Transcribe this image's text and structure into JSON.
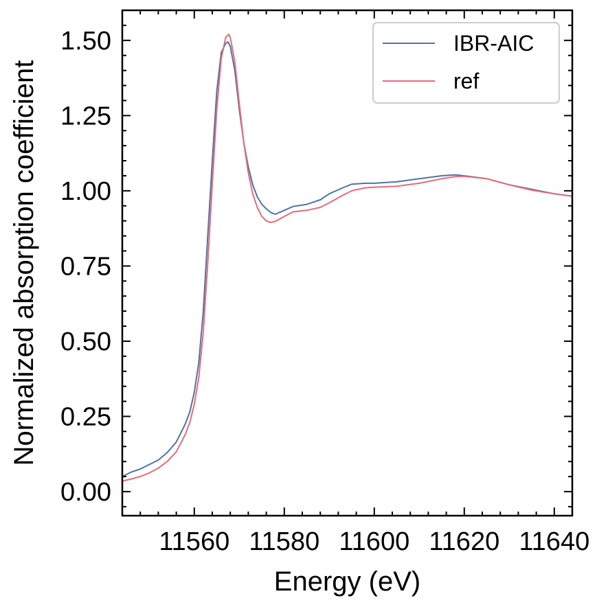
{
  "chart_data": {
    "type": "line",
    "xlabel": "Energy (eV)",
    "ylabel": "Normalized absorption coefficient",
    "xlim": [
      11544,
      11644
    ],
    "ylim": [
      -0.08,
      1.6
    ],
    "x_ticks": [
      11560,
      11580,
      11600,
      11620,
      11640
    ],
    "x_tick_labels": [
      "11560",
      "11580",
      "11600",
      "11620",
      "11640"
    ],
    "y_ticks": [
      0.0,
      0.25,
      0.5,
      0.75,
      1.0,
      1.25,
      1.5
    ],
    "y_tick_labels": [
      "0.00",
      "0.25",
      "0.50",
      "0.75",
      "1.00",
      "1.25",
      "1.50"
    ],
    "grid": false,
    "legend_position": "top-right",
    "series": [
      {
        "name": "IBR-AIC",
        "color": "#4a74a8",
        "x": [
          11544,
          11546,
          11548,
          11550,
          11552,
          11554,
          11556,
          11558,
          11559,
          11560,
          11561,
          11562,
          11563,
          11564,
          11565,
          11566,
          11567,
          11567.5,
          11568,
          11569,
          11570,
          11571,
          11572,
          11573,
          11574,
          11575,
          11576,
          11577,
          11578,
          11580,
          11582,
          11585,
          11588,
          11590,
          11593,
          11595,
          11598,
          11600,
          11605,
          11610,
          11615,
          11618,
          11620,
          11625,
          11630,
          11635,
          11640,
          11644
        ],
        "y": [
          0.05,
          0.065,
          0.075,
          0.09,
          0.105,
          0.13,
          0.165,
          0.225,
          0.265,
          0.33,
          0.43,
          0.6,
          0.85,
          1.1,
          1.33,
          1.46,
          1.49,
          1.495,
          1.48,
          1.4,
          1.27,
          1.16,
          1.08,
          1.02,
          0.98,
          0.955,
          0.94,
          0.928,
          0.922,
          0.935,
          0.948,
          0.955,
          0.97,
          0.99,
          1.01,
          1.022,
          1.025,
          1.025,
          1.03,
          1.04,
          1.05,
          1.053,
          1.05,
          1.04,
          1.02,
          1.005,
          0.99,
          0.982
        ]
      },
      {
        "name": "ref",
        "color": "#e8697a",
        "x": [
          11544,
          11546,
          11548,
          11550,
          11552,
          11554,
          11556,
          11558,
          11559,
          11560,
          11561,
          11562,
          11563,
          11564,
          11565,
          11566,
          11567,
          11567.7,
          11568,
          11569,
          11570,
          11571,
          11572,
          11573,
          11574,
          11575,
          11576,
          11577,
          11578,
          11580,
          11582,
          11585,
          11588,
          11590,
          11593,
          11595,
          11598,
          11600,
          11605,
          11610,
          11615,
          11618,
          11620,
          11625,
          11630,
          11635,
          11640,
          11644
        ],
        "y": [
          0.035,
          0.042,
          0.05,
          0.062,
          0.078,
          0.1,
          0.132,
          0.19,
          0.23,
          0.29,
          0.38,
          0.53,
          0.76,
          1.02,
          1.27,
          1.44,
          1.51,
          1.52,
          1.51,
          1.43,
          1.29,
          1.16,
          1.06,
          0.99,
          0.945,
          0.915,
          0.9,
          0.895,
          0.898,
          0.915,
          0.93,
          0.935,
          0.945,
          0.96,
          0.985,
          1.0,
          1.01,
          1.012,
          1.015,
          1.025,
          1.04,
          1.047,
          1.048,
          1.04,
          1.02,
          1.002,
          0.99,
          0.982
        ]
      }
    ]
  }
}
